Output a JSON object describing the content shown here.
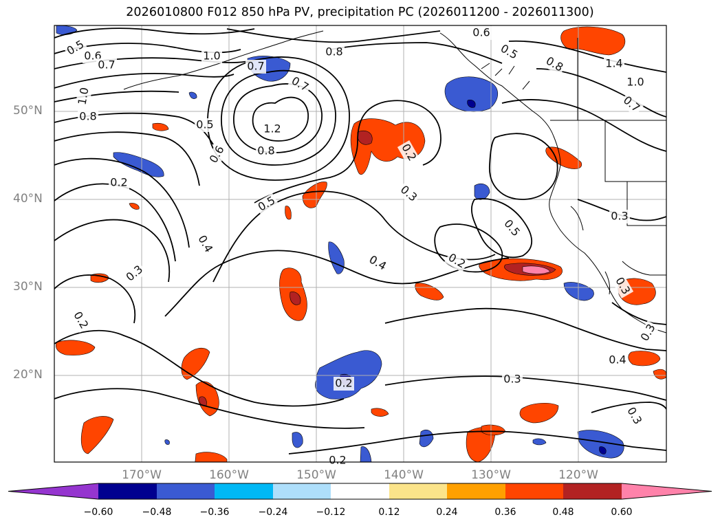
{
  "title": "2026010800 F012 850 hPa PV, precipitation PC (2026011200 - 2026011300)",
  "lat_labels": [
    "50°N",
    "40°N",
    "30°N",
    "20°N"
  ],
  "lon_labels": [
    "170°W",
    "160°W",
    "150°W",
    "140°W",
    "130°W",
    "120°W"
  ],
  "colorbar": {
    "ticks": [
      "−0.60",
      "−0.48",
      "−0.36",
      "−0.24",
      "−0.12",
      "0.12",
      "0.24",
      "0.36",
      "0.48",
      "0.60"
    ],
    "colors": [
      "#9535cf",
      "#00008f",
      "#3a5ad2",
      "#00b8f5",
      "#aedffb",
      "#ffffff",
      "#fbe48a",
      "#ffa000",
      "#ff4500",
      "#b22222",
      "#ff82aa"
    ]
  },
  "contour_labels": [
    "0.5",
    "0.6",
    "0.7",
    "1.0",
    "0.8",
    "0.7",
    "0.7",
    "0.6",
    "0.5",
    "0.8",
    "1.4",
    "1.0",
    "0.7",
    "0.8",
    "1.0",
    "0.5",
    "1.2",
    "0.8",
    "0.6",
    "0.2",
    "0.2",
    "0.3",
    "0.5",
    "0.3",
    "0.5",
    "0.4",
    "0.2",
    "0.3",
    "0.4",
    "0.3",
    "0.2",
    "0.2",
    "0.3",
    "0.4",
    "0.3",
    "0.2",
    "0.4",
    "0.3"
  ]
}
